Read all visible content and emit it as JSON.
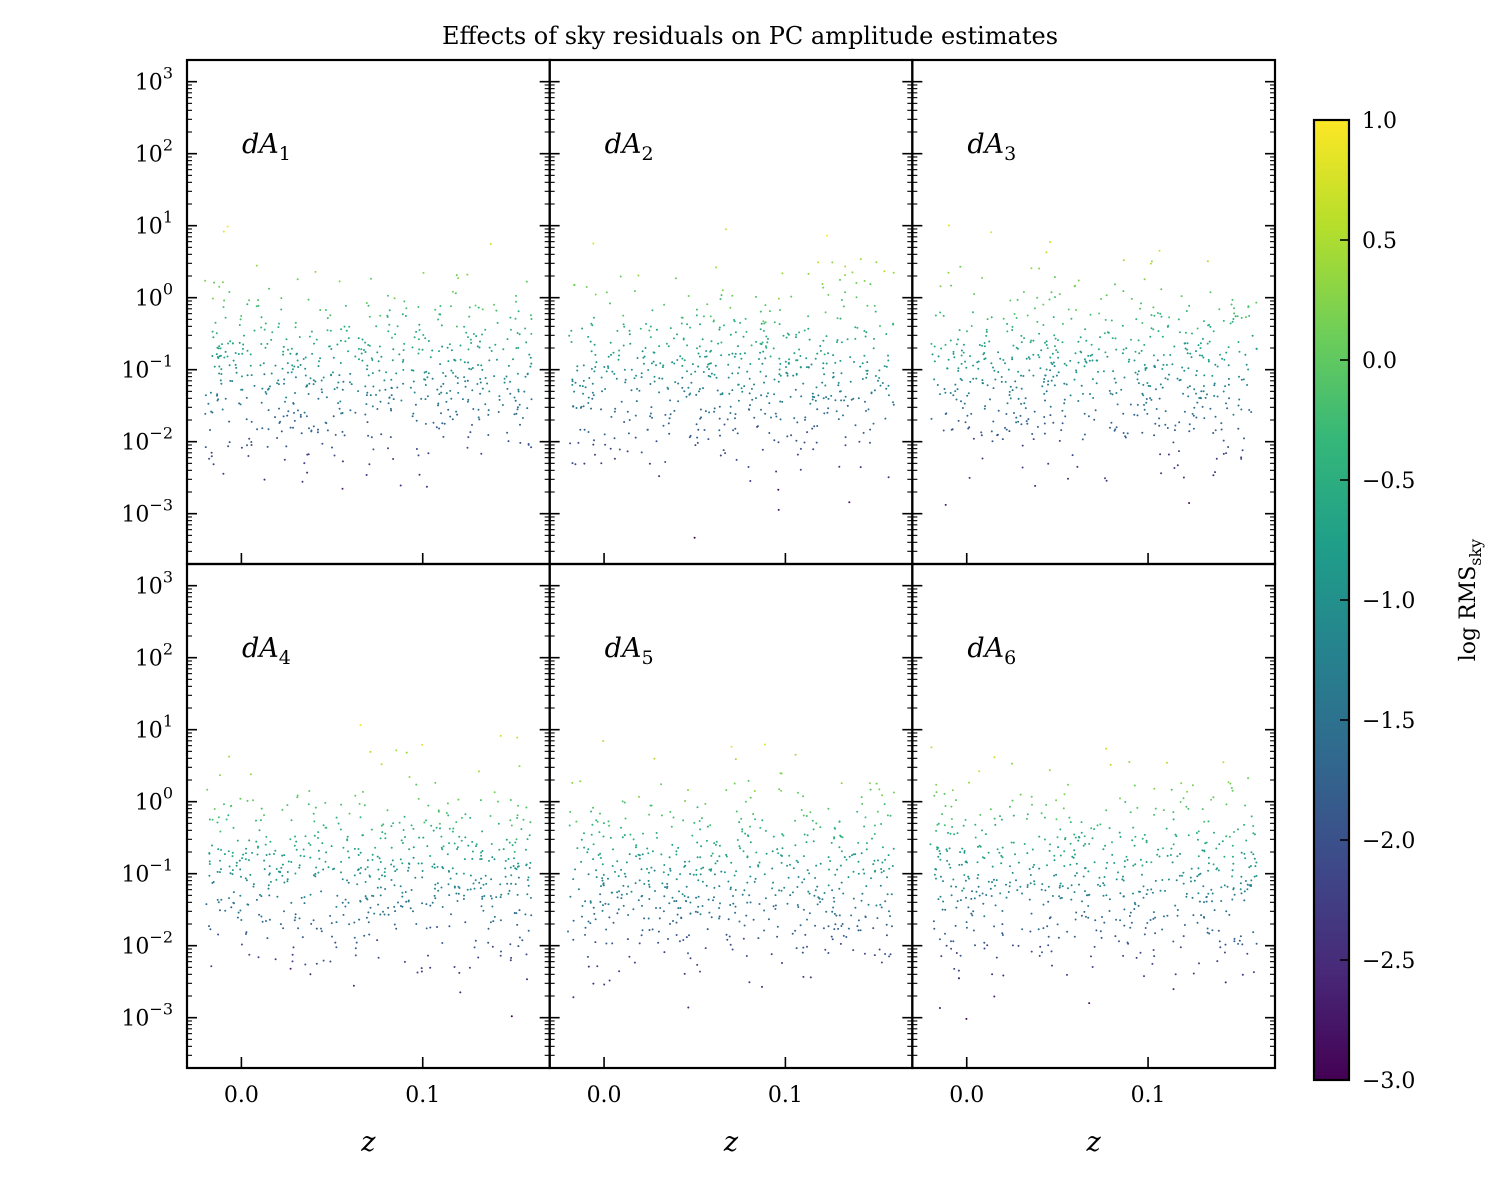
{
  "chart_data": {
    "type": "scatter",
    "title": "Effects of sky residuals on PC amplitude estimates",
    "xlabel": "z",
    "x_ticks": [
      0.0,
      0.1
    ],
    "x_tick_labels": [
      "0.0",
      "0.1"
    ],
    "xlim": [
      -0.03,
      0.17
    ],
    "yscale": "log",
    "ylim": [
      0.0002,
      2000
    ],
    "y_ticks": [
      0.001,
      0.01,
      0.1,
      1,
      10,
      100,
      1000
    ],
    "y_tick_labels": [
      {
        "base": "10",
        "exp": "−3"
      },
      {
        "base": "10",
        "exp": "−2"
      },
      {
        "base": "10",
        "exp": "−1"
      },
      {
        "base": "10",
        "exp": "0"
      },
      {
        "base": "10",
        "exp": "1"
      },
      {
        "base": "10",
        "exp": "2"
      },
      {
        "base": "10",
        "exp": "3"
      }
    ],
    "grid": false,
    "marker_size": 1,
    "panels": [
      {
        "label": {
          "main": "dA",
          "sub": "1"
        },
        "seed": 11
      },
      {
        "label": {
          "main": "dA",
          "sub": "2"
        },
        "seed": 23
      },
      {
        "label": {
          "main": "dA",
          "sub": "3"
        },
        "seed": 37
      },
      {
        "label": {
          "main": "dA",
          "sub": "4"
        },
        "seed": 41
      },
      {
        "label": {
          "main": "dA",
          "sub": "5"
        },
        "seed": 53
      },
      {
        "label": {
          "main": "dA",
          "sub": "6"
        },
        "seed": 67
      }
    ],
    "points_per_panel": 600,
    "colorbar": {
      "label": {
        "main": "log RMS",
        "sub": "sky"
      },
      "range": [
        -3.0,
        1.0
      ],
      "ticks": [
        1.0,
        0.5,
        0.0,
        -0.5,
        -1.0,
        -1.5,
        -2.0,
        -2.5,
        -3.0
      ],
      "tick_labels": [
        "1.0",
        "0.5",
        "0.0",
        "−0.5",
        "−1.0",
        "−1.5",
        "−2.0",
        "−2.5",
        "−3.0"
      ],
      "colormap": "viridis",
      "colormap_stops": [
        "#440154",
        "#482878",
        "#3e4989",
        "#31688e",
        "#26828e",
        "#1f9e89",
        "#35b779",
        "#6ece58",
        "#b5de2b",
        "#fde725"
      ]
    }
  }
}
